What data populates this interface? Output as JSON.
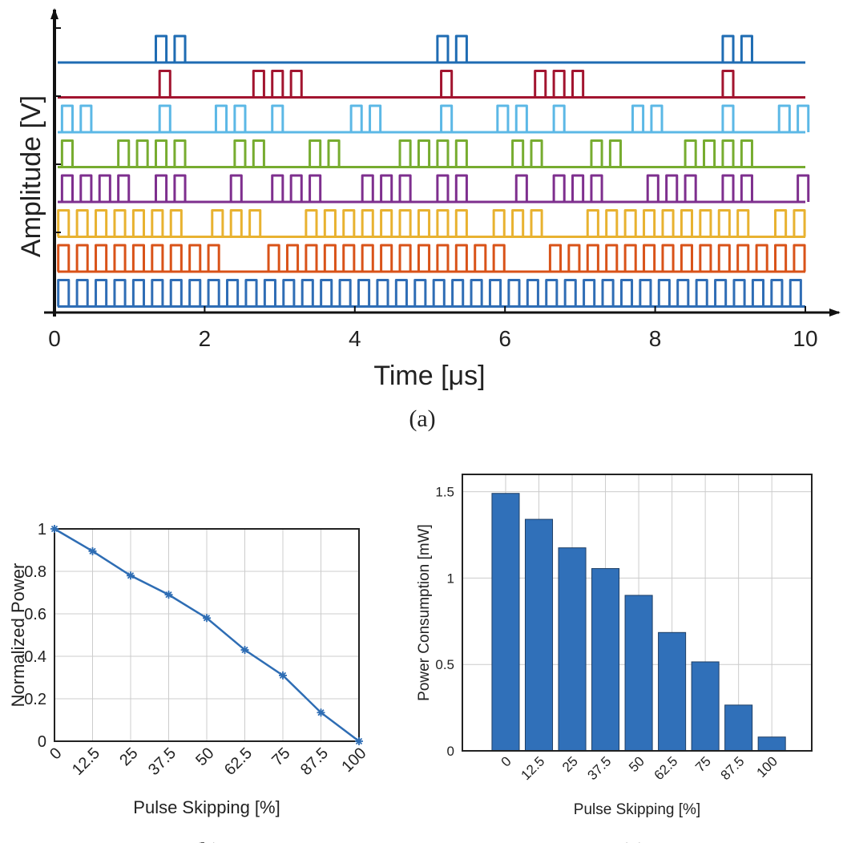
{
  "chart_data": [
    {
      "type": "pulse",
      "caption": "(a)",
      "x_label": "Time [μs]",
      "y_label": "Amplitude [V]",
      "xlim": [
        0,
        10
      ],
      "xticks": [
        0,
        2,
        4,
        6,
        8,
        10
      ],
      "pulse_width": 0.14,
      "series": [
        {
          "color": "#1f6cb3",
          "pulse_starts": [
            1.35,
            1.6,
            5.1,
            5.35,
            8.9,
            9.15
          ]
        },
        {
          "color": "#a2142f",
          "pulse_starts": [
            1.4,
            2.65,
            2.9,
            3.15,
            5.15,
            6.4,
            6.65,
            6.9,
            8.9
          ]
        },
        {
          "color": "#5cb8e6",
          "pulse_starts": [
            0.1,
            0.35,
            1.4,
            2.15,
            2.4,
            2.9,
            3.95,
            4.2,
            5.15,
            5.9,
            6.15,
            6.65,
            7.7,
            7.95,
            8.9,
            9.65,
            9.9
          ]
        },
        {
          "color": "#77ac30",
          "pulse_starts": [
            0.1,
            0.85,
            1.1,
            1.35,
            1.6,
            2.4,
            2.65,
            3.4,
            3.65,
            4.6,
            4.85,
            5.1,
            5.35,
            6.1,
            6.35,
            7.15,
            7.4,
            8.4,
            8.65,
            8.9,
            9.15
          ]
        },
        {
          "color": "#7e2f8e",
          "pulse_starts": [
            0.1,
            0.35,
            0.6,
            0.85,
            1.35,
            1.6,
            2.35,
            2.9,
            3.15,
            3.4,
            4.1,
            4.35,
            4.6,
            5.1,
            5.35,
            6.15,
            6.65,
            6.9,
            7.15,
            7.9,
            8.15,
            8.4,
            8.9,
            9.15,
            9.9
          ]
        },
        {
          "color": "#e8b230",
          "pulse_starts": [
            0.05,
            0.3,
            0.55,
            0.8,
            1.05,
            1.3,
            1.55,
            2.1,
            2.35,
            2.6,
            3.35,
            3.6,
            3.85,
            4.1,
            4.35,
            4.6,
            4.85,
            5.1,
            5.35,
            5.85,
            6.1,
            6.35,
            7.1,
            7.35,
            7.6,
            7.85,
            8.1,
            8.35,
            8.6,
            8.85,
            9.1,
            9.6,
            9.85
          ]
        },
        {
          "color": "#d95319",
          "pulse_starts": [
            0.05,
            0.3,
            0.55,
            0.8,
            1.05,
            1.3,
            1.55,
            1.8,
            2.05,
            2.85,
            3.1,
            3.35,
            3.6,
            3.85,
            4.1,
            4.35,
            4.6,
            4.85,
            5.1,
            5.35,
            5.6,
            5.85,
            6.6,
            6.85,
            7.1,
            7.35,
            7.6,
            7.85,
            8.1,
            8.35,
            8.6,
            8.85,
            9.1,
            9.35,
            9.6,
            9.85
          ]
        },
        {
          "color": "#2f6db5",
          "pulse_starts": [
            0.05,
            0.3,
            0.55,
            0.8,
            1.05,
            1.3,
            1.55,
            1.8,
            2.05,
            2.3,
            2.55,
            2.8,
            3.05,
            3.3,
            3.55,
            3.8,
            4.05,
            4.3,
            4.55,
            4.8,
            5.05,
            5.3,
            5.55,
            5.8,
            6.05,
            6.3,
            6.55,
            6.8,
            7.05,
            7.3,
            7.55,
            7.8,
            8.05,
            8.3,
            8.55,
            8.8,
            9.05,
            9.3,
            9.55,
            9.8
          ]
        }
      ]
    },
    {
      "type": "line",
      "caption": "(b)",
      "x_label": "Pulse Skipping [%]",
      "y_label": "Normalized Power",
      "x": [
        0,
        12.5,
        25,
        37.5,
        50,
        62.5,
        75,
        87.5,
        100
      ],
      "values": [
        1,
        0.895,
        0.78,
        0.69,
        0.58,
        0.43,
        0.31,
        0.135,
        0
      ],
      "color": "#2e6db4",
      "xlim": [
        0,
        100
      ],
      "xticks": [
        0,
        12.5,
        25,
        37.5,
        50,
        62.5,
        75,
        87.5,
        100
      ],
      "ylim": [
        0,
        1
      ],
      "yticks": [
        0,
        0.2,
        0.4,
        0.6,
        0.8,
        1
      ],
      "grid": true
    },
    {
      "type": "bar",
      "caption": "(c)",
      "x_label": "Pulse Skipping [%]",
      "y_label": "Power Consumption [mW]",
      "categories": [
        "0",
        "12.5",
        "25",
        "37.5",
        "50",
        "62.5",
        "75",
        "87.5",
        "100"
      ],
      "values": [
        1.49,
        1.34,
        1.175,
        1.055,
        0.9,
        0.685,
        0.515,
        0.265,
        0.08
      ],
      "color": "#3070b9",
      "ylim": [
        0,
        1.6
      ],
      "yticks": [
        0,
        0.5,
        1,
        1.5
      ],
      "grid": true
    }
  ]
}
